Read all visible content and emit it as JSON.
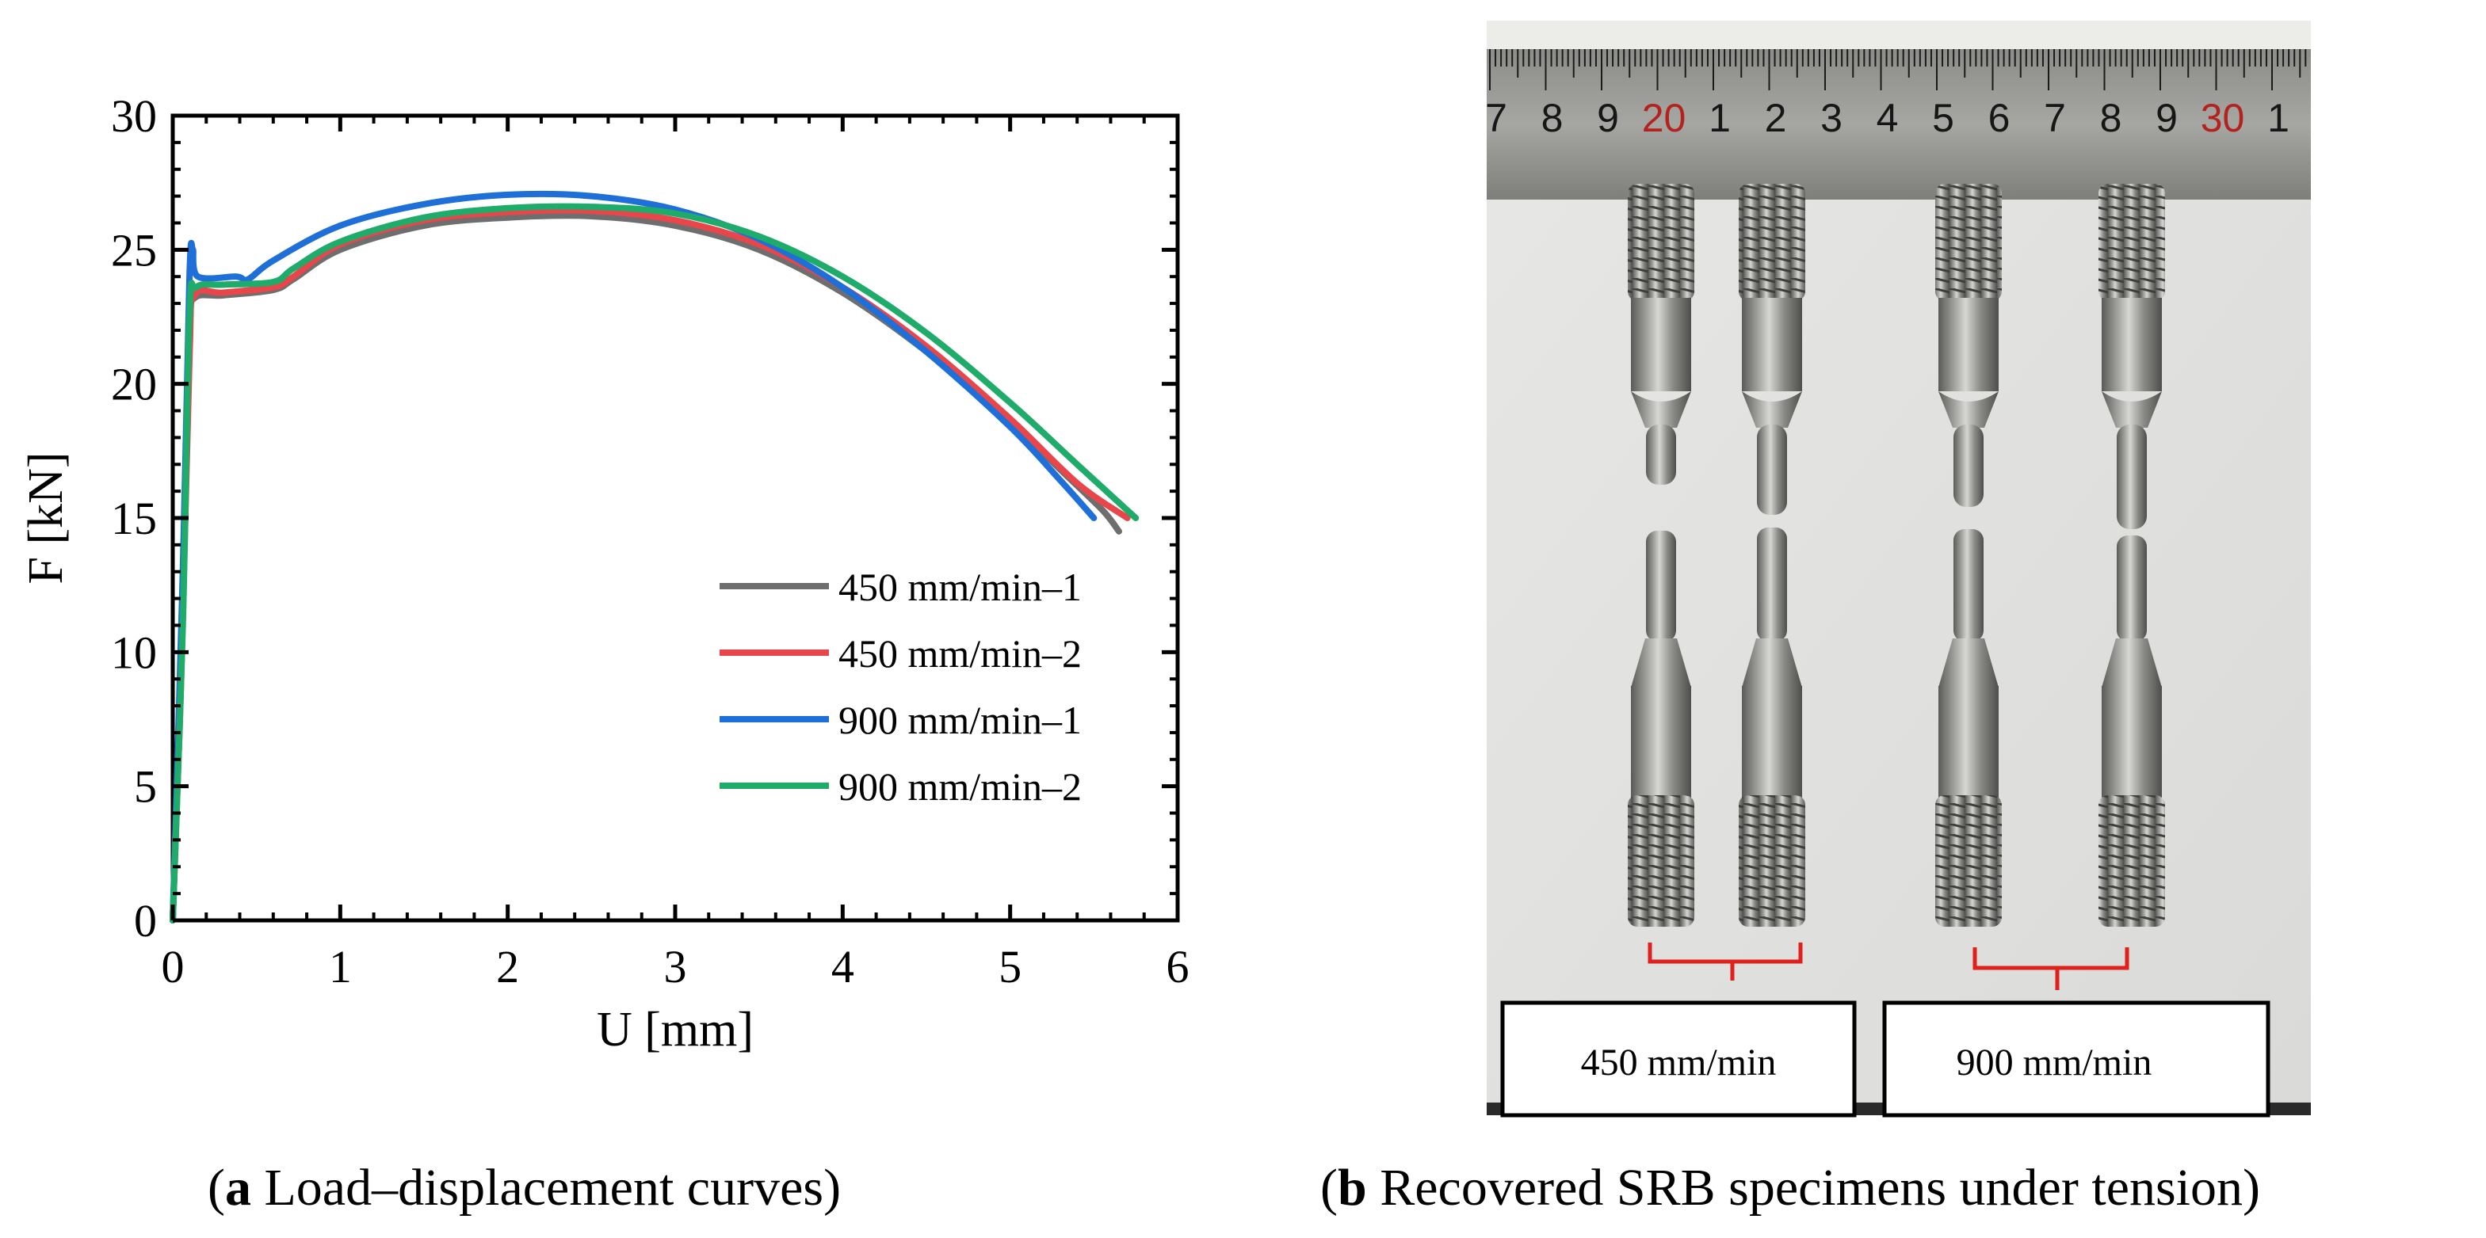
{
  "chart_data": {
    "type": "line",
    "xlabel": "U [mm]",
    "ylabel": "F [kN]",
    "xlim": [
      0,
      6
    ],
    "ylim": [
      0,
      30
    ],
    "xticks": [
      "0",
      "1",
      "2",
      "3",
      "4",
      "5",
      "6"
    ],
    "yticks": [
      "0",
      "5",
      "10",
      "15",
      "20",
      "25",
      "30"
    ],
    "grid": false,
    "legend_position": "lower-right",
    "series": [
      {
        "name": "450 mm/min–1",
        "color": "#6e6e6e",
        "points": [
          [
            0,
            0
          ],
          [
            0.05,
            10
          ],
          [
            0.1,
            22
          ],
          [
            0.13,
            23.2
          ],
          [
            0.3,
            23.3
          ],
          [
            0.6,
            23.5
          ],
          [
            0.72,
            23.9
          ],
          [
            1.0,
            25.0
          ],
          [
            1.5,
            25.9
          ],
          [
            2.0,
            26.2
          ],
          [
            2.5,
            26.25
          ],
          [
            3.0,
            25.9
          ],
          [
            3.5,
            25.0
          ],
          [
            4.0,
            23.4
          ],
          [
            4.5,
            21.2
          ],
          [
            5.0,
            18.6
          ],
          [
            5.3,
            16.8
          ],
          [
            5.55,
            15.3
          ],
          [
            5.65,
            14.5
          ]
        ]
      },
      {
        "name": "450 mm/min–2",
        "color": "#e8464a",
        "points": [
          [
            0,
            0
          ],
          [
            0.05,
            9
          ],
          [
            0.1,
            21
          ],
          [
            0.13,
            23.3
          ],
          [
            0.3,
            23.4
          ],
          [
            0.6,
            23.6
          ],
          [
            0.72,
            24.0
          ],
          [
            1.0,
            25.2
          ],
          [
            1.5,
            26.1
          ],
          [
            2.0,
            26.4
          ],
          [
            2.5,
            26.45
          ],
          [
            3.0,
            26.1
          ],
          [
            3.5,
            25.2
          ],
          [
            4.0,
            23.6
          ],
          [
            4.5,
            21.4
          ],
          [
            5.0,
            18.7
          ],
          [
            5.4,
            16.3
          ],
          [
            5.7,
            15.0
          ]
        ]
      },
      {
        "name": "900 mm/min–1",
        "color": "#1f6fd8",
        "points": [
          [
            0,
            0
          ],
          [
            0.06,
            13
          ],
          [
            0.1,
            24
          ],
          [
            0.12,
            25.0
          ],
          [
            0.15,
            24.0
          ],
          [
            0.38,
            24.0
          ],
          [
            0.45,
            23.9
          ],
          [
            0.6,
            24.6
          ],
          [
            1.0,
            25.9
          ],
          [
            1.5,
            26.7
          ],
          [
            2.0,
            27.05
          ],
          [
            2.5,
            27.0
          ],
          [
            3.0,
            26.5
          ],
          [
            3.5,
            25.4
          ],
          [
            4.0,
            23.6
          ],
          [
            4.5,
            21.2
          ],
          [
            5.0,
            18.4
          ],
          [
            5.3,
            16.4
          ],
          [
            5.5,
            15.0
          ]
        ]
      },
      {
        "name": "900 mm/min–2",
        "color": "#1fab6a",
        "points": [
          [
            0,
            0
          ],
          [
            0.06,
            11
          ],
          [
            0.1,
            22.5
          ],
          [
            0.14,
            23.6
          ],
          [
            0.3,
            23.7
          ],
          [
            0.6,
            23.8
          ],
          [
            0.72,
            24.3
          ],
          [
            1.0,
            25.3
          ],
          [
            1.5,
            26.2
          ],
          [
            2.0,
            26.55
          ],
          [
            2.5,
            26.6
          ],
          [
            3.0,
            26.35
          ],
          [
            3.5,
            25.5
          ],
          [
            4.0,
            24.0
          ],
          [
            4.5,
            21.9
          ],
          [
            5.0,
            19.3
          ],
          [
            5.4,
            17.0
          ],
          [
            5.75,
            15.0
          ]
        ]
      }
    ]
  },
  "photo": {
    "ruler_numbers": [
      "7",
      "8",
      "9",
      "20",
      "1",
      "2",
      "3",
      "4",
      "5",
      "6",
      "7",
      "8",
      "9",
      "30",
      "1"
    ],
    "ruler_red_numbers": [
      "20",
      "30"
    ],
    "group_labels": [
      "450 mm/min",
      "900 mm/min"
    ]
  },
  "captions": {
    "a_letter": "a",
    "a_text": " Load–displacement curves",
    "b_letter": "b",
    "b_text": " Recovered SRB specimens under tension"
  }
}
